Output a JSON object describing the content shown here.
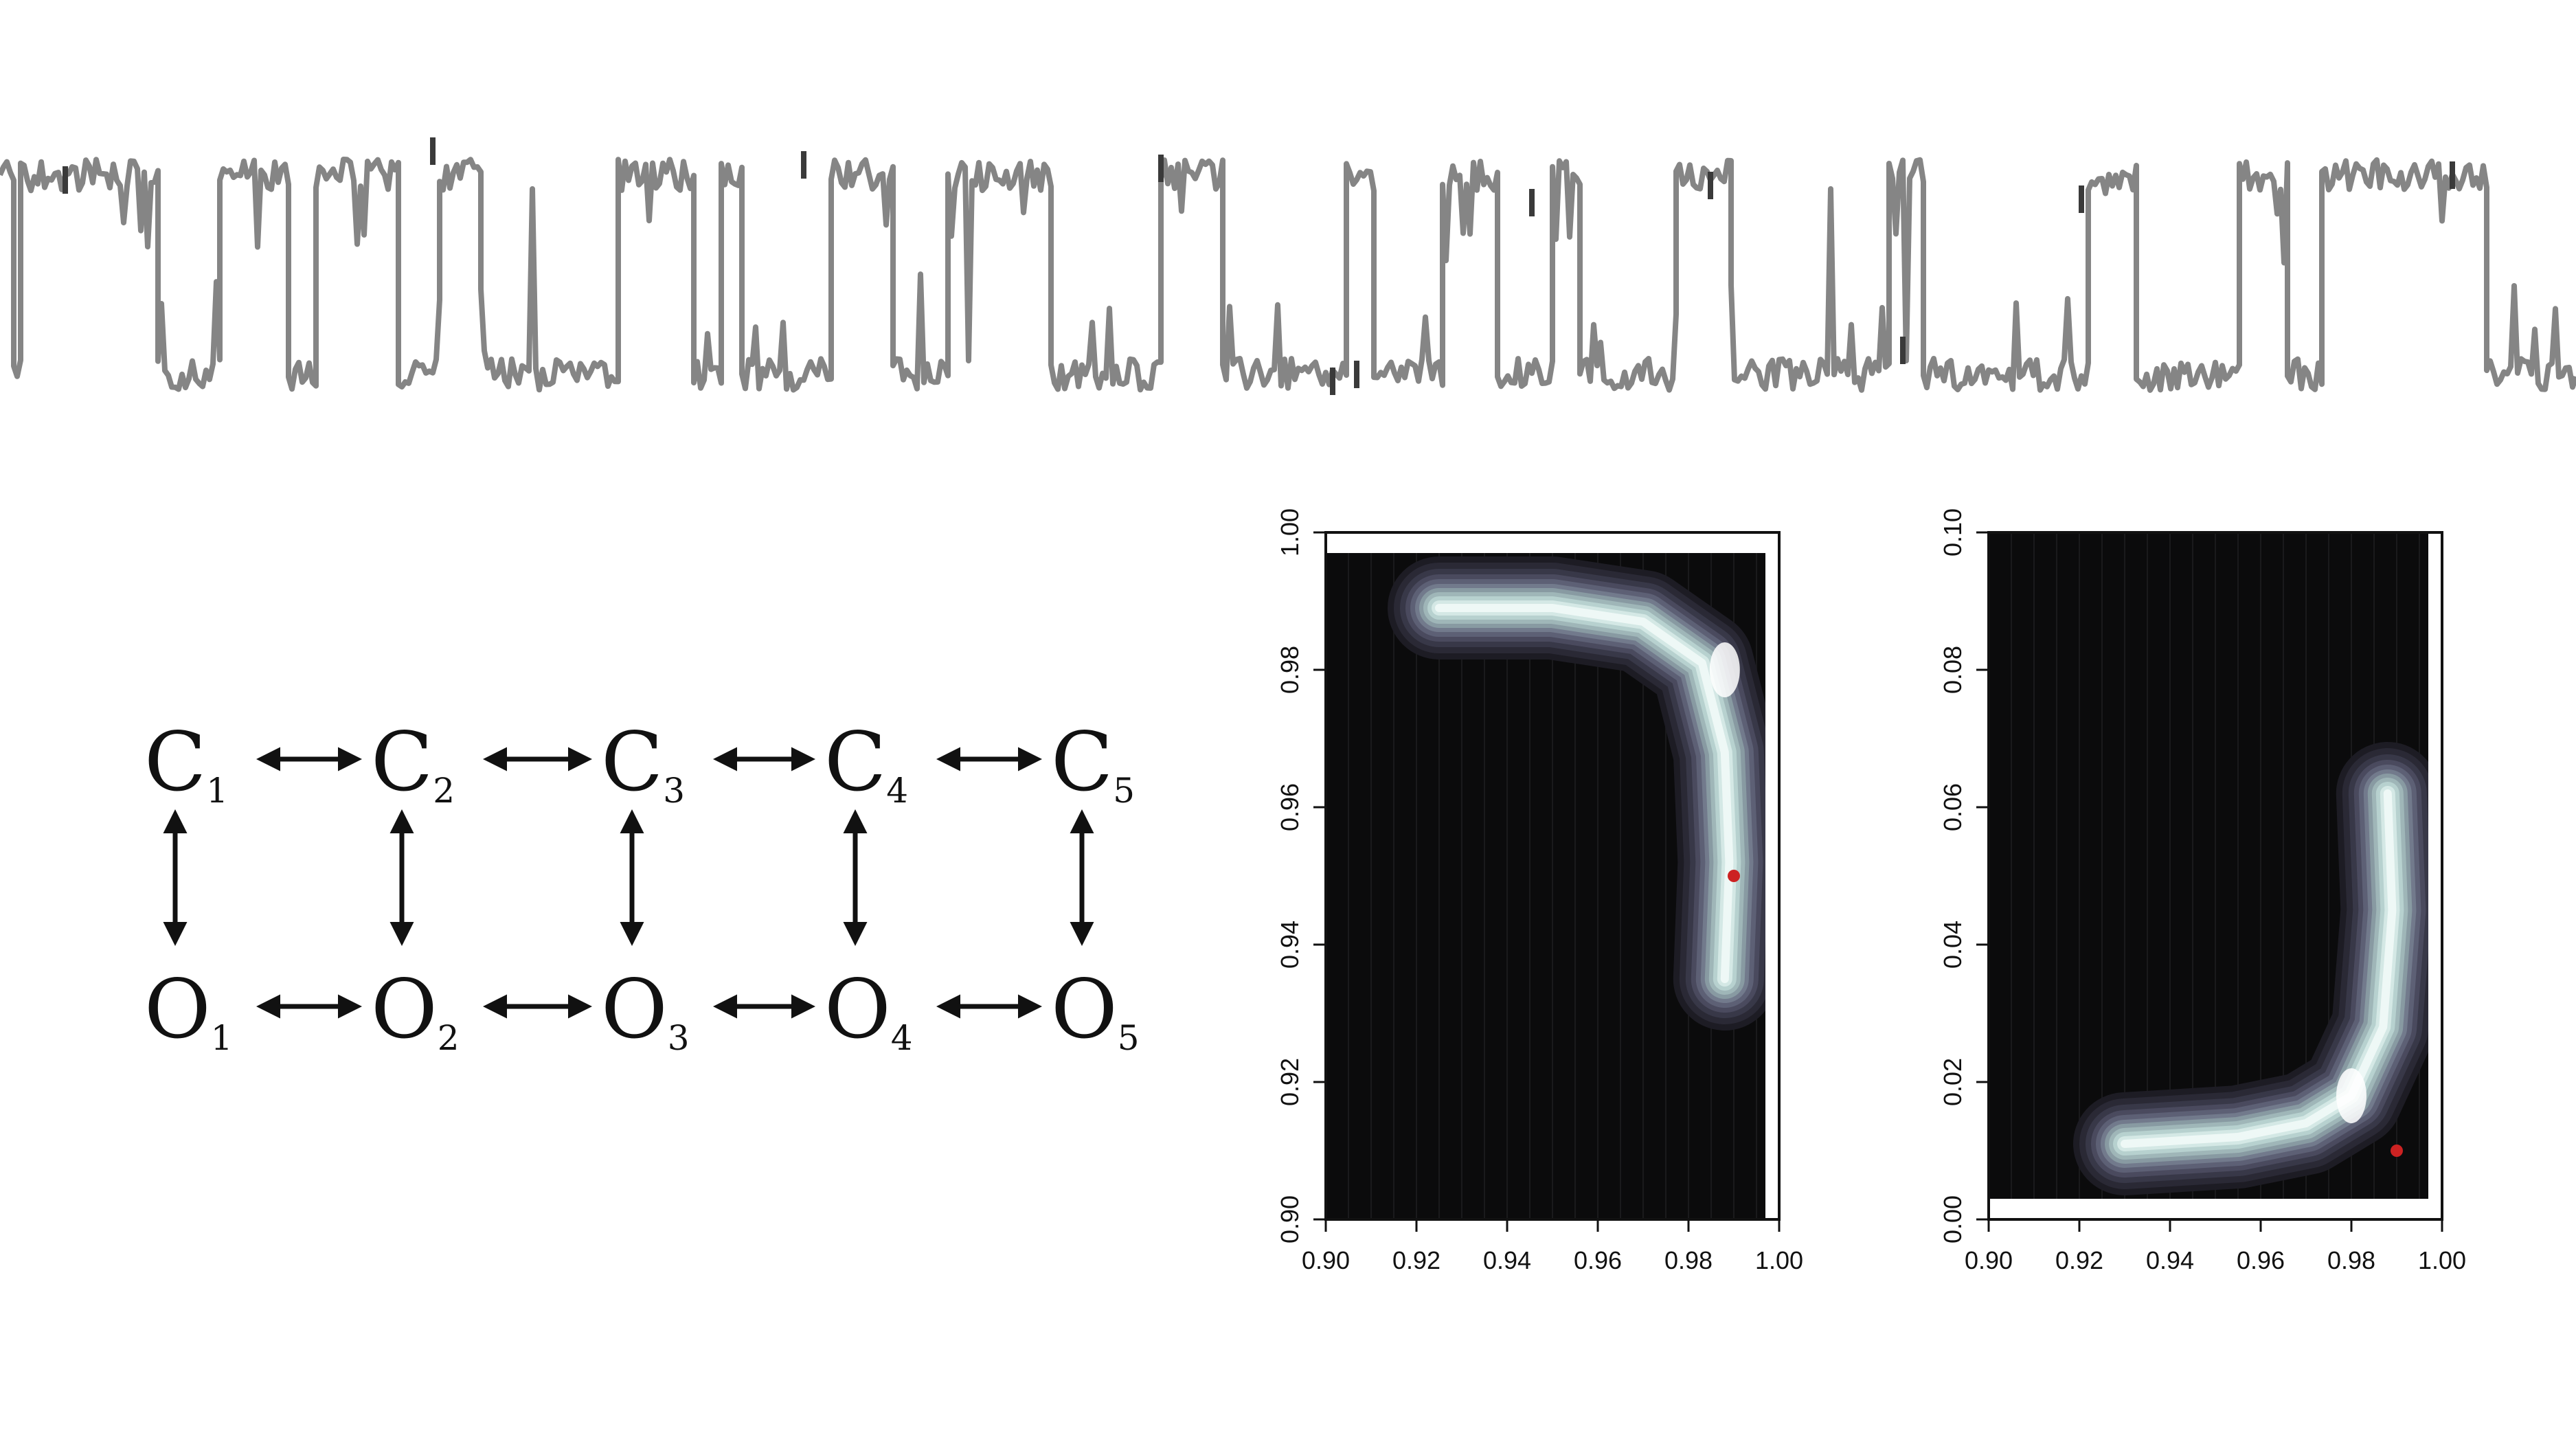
{
  "states": {
    "closed": [
      {
        "letter": "C",
        "sub": "1"
      },
      {
        "letter": "C",
        "sub": "2"
      },
      {
        "letter": "C",
        "sub": "3"
      },
      {
        "letter": "C",
        "sub": "4"
      },
      {
        "letter": "C",
        "sub": "5"
      }
    ],
    "open": [
      {
        "letter": "O",
        "sub": "1"
      },
      {
        "letter": "O",
        "sub": "2"
      },
      {
        "letter": "O",
        "sub": "3"
      },
      {
        "letter": "O",
        "sub": "4"
      },
      {
        "letter": "O",
        "sub": "5"
      }
    ]
  },
  "colors": {
    "trace": "#858585",
    "trace_highlight": "#3a3a3a",
    "background": "#0b0b0c",
    "marker": "#cc2222"
  },
  "chart_data": [
    {
      "type": "heatmap",
      "title": "",
      "xlabel": "",
      "ylabel": "",
      "xlim": [
        0.9,
        1.0
      ],
      "ylim": [
        0.9,
        1.0
      ],
      "x_ticks": [
        "0.90",
        "0.92",
        "0.94",
        "0.96",
        "0.98",
        "1.00"
      ],
      "y_ticks": [
        "0.90",
        "0.92",
        "0.94",
        "0.96",
        "0.98",
        "1.00"
      ],
      "density_peak": [
        0.988,
        0.98
      ],
      "ridge": [
        [
          0.925,
          0.989
        ],
        [
          0.95,
          0.989
        ],
        [
          0.97,
          0.987
        ],
        [
          0.983,
          0.981
        ],
        [
          0.988,
          0.968
        ],
        [
          0.989,
          0.952
        ],
        [
          0.988,
          0.935
        ]
      ],
      "marker": [
        0.99,
        0.95
      ]
    },
    {
      "type": "heatmap",
      "title": "",
      "xlabel": "",
      "ylabel": "",
      "xlim": [
        0.9,
        1.0
      ],
      "ylim": [
        0.0,
        0.1
      ],
      "x_ticks": [
        "0.90",
        "0.92",
        "0.94",
        "0.96",
        "0.98",
        "1.00"
      ],
      "y_ticks": [
        "0.00",
        "0.02",
        "0.04",
        "0.06",
        "0.08",
        "0.10"
      ],
      "density_peak": [
        0.98,
        0.018
      ],
      "ridge": [
        [
          0.93,
          0.011
        ],
        [
          0.955,
          0.012
        ],
        [
          0.97,
          0.014
        ],
        [
          0.98,
          0.018
        ],
        [
          0.987,
          0.028
        ],
        [
          0.989,
          0.045
        ],
        [
          0.988,
          0.062
        ]
      ],
      "marker": [
        0.99,
        0.01
      ]
    }
  ]
}
